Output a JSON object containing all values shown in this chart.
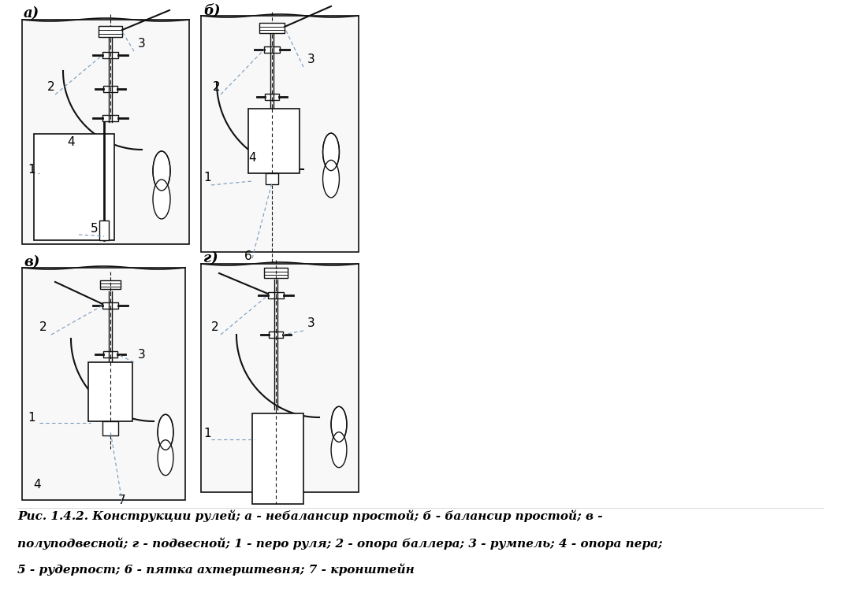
{
  "caption_line1": "Рис. 1.4.2. Конструкции рулей; а - небалансир простой; б - балансир простой; в -",
  "caption_line2": "полуподвесной; г - подвесной; 1 - перо руля; 2 - опора баллера; 3 - румпель; 4 - опора пера;",
  "caption_line3": "5 - рудерпост; 6 - пятка ахтерштевня; 7 - кронштейн",
  "background_color": "#ffffff",
  "text_color": "#000000",
  "line_color": "#111111"
}
